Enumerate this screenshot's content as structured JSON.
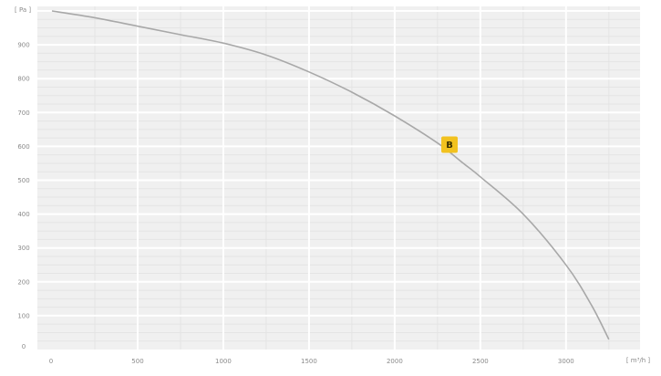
{
  "chart_data": {
    "type": "line",
    "title": "",
    "xlabel": "",
    "ylabel": "",
    "x_unit": "[ m³/h ]",
    "y_unit": "[ Pa ]",
    "xlim": [
      0,
      3400
    ],
    "ylim": [
      0,
      1000
    ],
    "x_ticks": [
      500,
      1000,
      1500,
      2000,
      2500,
      3000
    ],
    "y_ticks": [
      100,
      200,
      300,
      400,
      500,
      600,
      700,
      800,
      900
    ],
    "x_origin_label": "0",
    "y_origin_label": "0",
    "grid": true,
    "series": [
      {
        "x": [
          0,
          250,
          500,
          750,
          1000,
          1250,
          1500,
          1750,
          2000,
          2250,
          2400,
          2500,
          2750,
          3000,
          3150,
          3250
        ],
        "y": [
          1000,
          980,
          955,
          930,
          905,
          870,
          820,
          760,
          690,
          610,
          550,
          510,
          400,
          250,
          130,
          30
        ]
      }
    ],
    "annotations": [
      {
        "label": "B",
        "x": 2320,
        "y": 605
      }
    ],
    "colors": {
      "line": "#a8a8a8",
      "plot_background": "#f0f0f0",
      "major_grid": "#ffffff",
      "minor_grid": "#e4e4e4",
      "marker": "#f2c21f"
    }
  }
}
